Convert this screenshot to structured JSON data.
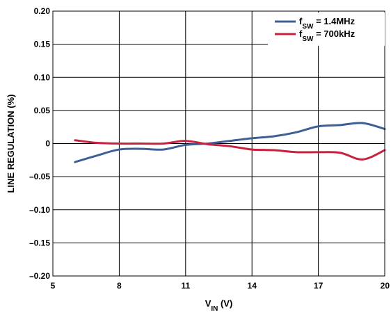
{
  "chart_data": {
    "type": "line",
    "xlabel_main": "V",
    "xlabel_sub": "IN",
    "xlabel_unit": " (V)",
    "ylabel": "LINE REGULATION (%)",
    "xlim": [
      5,
      20
    ],
    "ylim": [
      -0.2,
      0.2
    ],
    "x_ticks": [
      5,
      8,
      11,
      14,
      17,
      20
    ],
    "x_tick_labels": [
      "5",
      "8",
      "11",
      "14",
      "17",
      "20"
    ],
    "y_ticks": [
      0.2,
      0.15,
      0.1,
      0.05,
      0,
      -0.05,
      -0.1,
      -0.15,
      -0.2
    ],
    "y_tick_labels": [
      "0.20",
      "0.15",
      "0.10",
      "0.05",
      "0",
      "–0.05",
      "–0.10",
      "–0.15",
      "–0.20"
    ],
    "grid": true,
    "legend_position": "top-right",
    "series": [
      {
        "name_main": "f",
        "name_sub": "SW",
        "name_rest": " = 1.4MHz",
        "color": "#3d5f95",
        "x": [
          6,
          7,
          8,
          9,
          10,
          11,
          12,
          13,
          14,
          15,
          16,
          17,
          18,
          19,
          20
        ],
        "y": [
          -0.028,
          -0.018,
          -0.009,
          -0.008,
          -0.009,
          -0.002,
          0.0,
          0.004,
          0.008,
          0.011,
          0.017,
          0.026,
          0.028,
          0.031,
          0.022
        ]
      },
      {
        "name_main": "f",
        "name_sub": "SW",
        "name_rest": " = 700kHz",
        "color": "#c8203e",
        "x": [
          6,
          7,
          8,
          9,
          10,
          11,
          12,
          13,
          14,
          15,
          16,
          17,
          18,
          19,
          20
        ],
        "y": [
          0.005,
          0.001,
          0.0,
          0.0,
          0.0,
          0.004,
          -0.001,
          -0.004,
          -0.009,
          -0.01,
          -0.013,
          -0.013,
          -0.014,
          -0.024,
          -0.01
        ]
      }
    ]
  }
}
